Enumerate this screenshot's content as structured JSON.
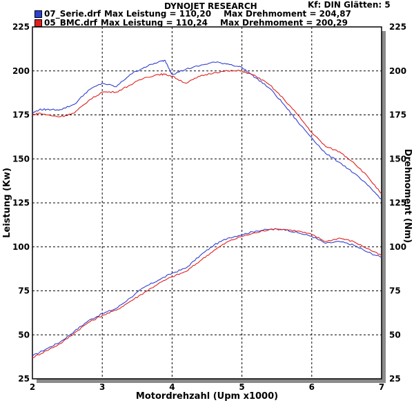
{
  "header": {
    "title": "DYNOJET RESEARCH",
    "settings": "Kf: DIN  Glätten: 5"
  },
  "legend": [
    {
      "name": "07_Serie.drf",
      "power_text": "Max Leistung = 110,20",
      "torque_text": "Max Drehmoment = 204,87",
      "color": "#2f3fd0"
    },
    {
      "name": "05_BMC.drf",
      "power_text": "Max Leistung = 110,24",
      "torque_text": "Max Drehmoment = 200,29",
      "color": "#e0201c"
    }
  ],
  "chart_data": {
    "type": "line",
    "title": "DYNOJET RESEARCH",
    "xlabel": "Motordrehzahl (Upm x1000)",
    "ylabel_left": "Leistung (Kw)",
    "ylabel_right": "Drehmoment (Nm)",
    "xlim": [
      2,
      7
    ],
    "ylim_left": [
      25,
      225
    ],
    "ylim_right": [
      25,
      225
    ],
    "x_ticks": [
      2,
      3,
      4,
      5,
      6,
      7
    ],
    "y_ticks": [
      25,
      50,
      75,
      100,
      125,
      150,
      175,
      200,
      225
    ],
    "grid": true,
    "legend_position": "top-left",
    "series": [
      {
        "name": "07_Serie.drf",
        "quantity": "Leistung",
        "color": "#2f3fd0",
        "x": [
          2.0,
          2.2,
          2.4,
          2.6,
          2.8,
          3.0,
          3.2,
          3.4,
          3.6,
          3.8,
          4.0,
          4.2,
          4.4,
          4.6,
          4.8,
          5.0,
          5.2,
          5.4,
          5.6,
          5.8,
          6.0,
          6.2,
          6.4,
          6.6,
          6.8,
          7.0
        ],
        "y": [
          38,
          42,
          46,
          52,
          58,
          62,
          65,
          71,
          77,
          81,
          85,
          88,
          95,
          101,
          105,
          107,
          109,
          110,
          110,
          108,
          106,
          102,
          103,
          101,
          97,
          94
        ]
      },
      {
        "name": "05_BMC.drf",
        "quantity": "Leistung",
        "color": "#e0201c",
        "x": [
          2.0,
          2.2,
          2.4,
          2.6,
          2.8,
          3.0,
          3.2,
          3.4,
          3.6,
          3.8,
          4.0,
          4.2,
          4.4,
          4.6,
          4.8,
          5.0,
          5.2,
          5.4,
          5.6,
          5.8,
          6.0,
          6.2,
          6.4,
          6.6,
          6.8,
          7.0
        ],
        "y": [
          37,
          41,
          45,
          51,
          57,
          61,
          64,
          69,
          74,
          79,
          83,
          86,
          92,
          98,
          103,
          106,
          108,
          110,
          110,
          109,
          107,
          103,
          105,
          103,
          99,
          95
        ]
      },
      {
        "name": "07_Serie.drf",
        "quantity": "Drehmoment",
        "color": "#2f3fd0",
        "x": [
          2.0,
          2.1,
          2.2,
          2.4,
          2.6,
          2.8,
          3.0,
          3.2,
          3.4,
          3.6,
          3.8,
          3.9,
          4.0,
          4.2,
          4.4,
          4.6,
          4.8,
          5.0,
          5.2,
          5.4,
          5.6,
          5.8,
          6.0,
          6.2,
          6.4,
          6.6,
          6.8,
          7.0
        ],
        "y": [
          176,
          178,
          178,
          178,
          181,
          189,
          193,
          191,
          198,
          202,
          205,
          206,
          198,
          201,
          203,
          205,
          204,
          202,
          196,
          190,
          181,
          171,
          162,
          153,
          148,
          142,
          135,
          127
        ]
      },
      {
        "name": "05_BMC.drf",
        "quantity": "Drehmoment",
        "color": "#e0201c",
        "x": [
          2.0,
          2.1,
          2.2,
          2.4,
          2.6,
          2.8,
          3.0,
          3.2,
          3.4,
          3.6,
          3.8,
          3.9,
          4.0,
          4.2,
          4.4,
          4.6,
          4.8,
          5.0,
          5.2,
          5.4,
          5.6,
          5.8,
          6.0,
          6.2,
          6.4,
          6.6,
          6.8,
          7.0
        ],
        "y": [
          175,
          176,
          175,
          174,
          176,
          183,
          188,
          188,
          192,
          196,
          198,
          198,
          197,
          193,
          197,
          199,
          200,
          200,
          197,
          192,
          184,
          175,
          165,
          157,
          154,
          148,
          140,
          130
        ]
      }
    ]
  }
}
